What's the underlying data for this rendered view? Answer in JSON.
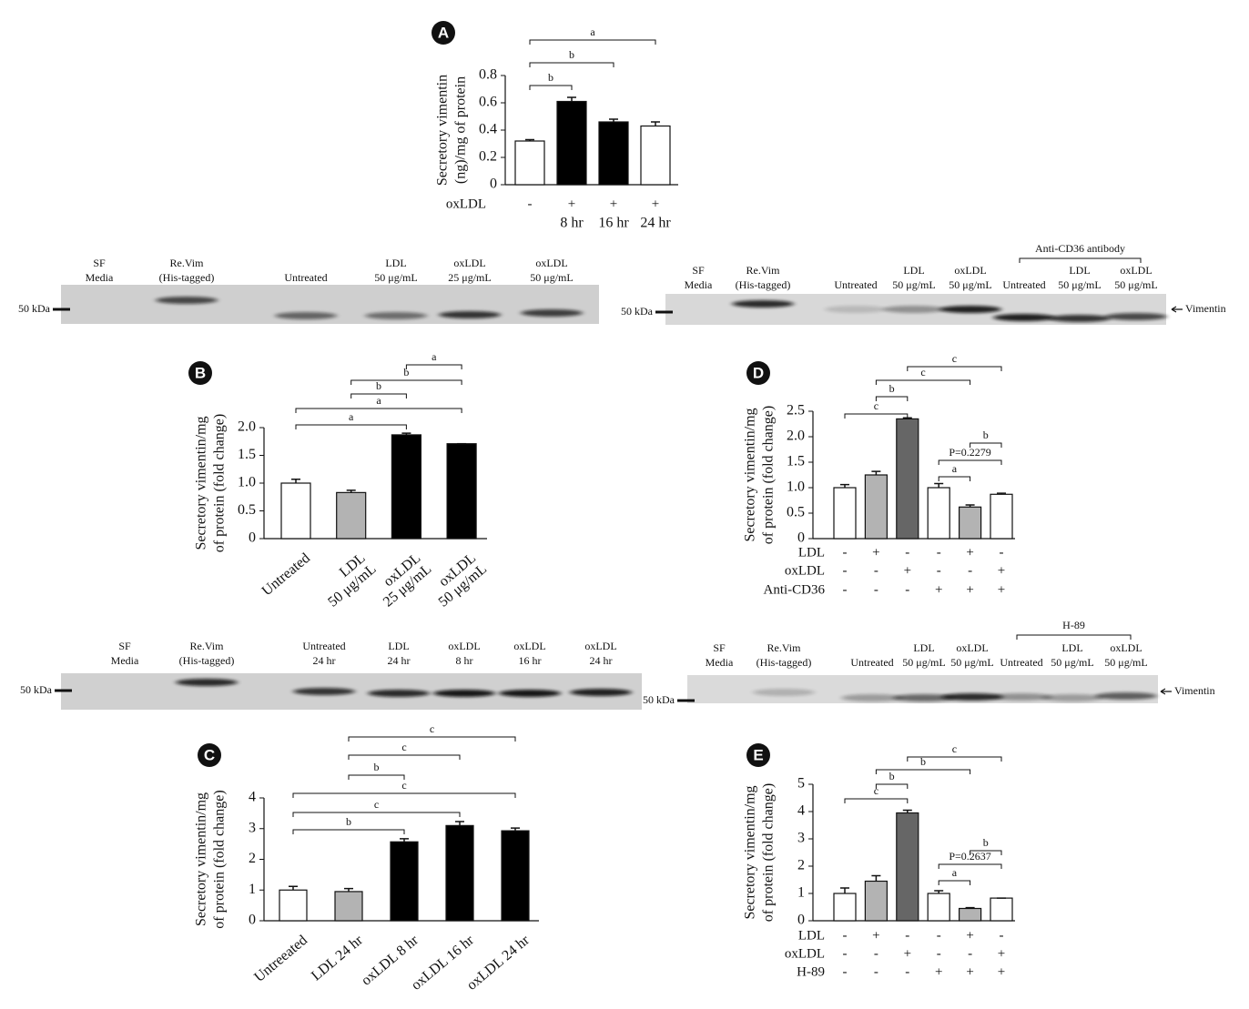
{
  "chart_data": [
    {
      "type": "bar",
      "panel": "A",
      "ylabel": [
        "Secretory vimentin",
        "(ng)/mg of protein"
      ],
      "categories": [
        null,
        "8 hr",
        "16 hr",
        "24 hr"
      ],
      "conditions": [
        {
          "name": "oxLDL",
          "values": [
            "-",
            "+",
            "+",
            "+"
          ]
        }
      ],
      "values": [
        0.32,
        0.61,
        0.46,
        0.43
      ],
      "errors": [
        0.01,
        0.03,
        0.02,
        0.03
      ],
      "colors": [
        "#ffffff",
        "#000000",
        "#000000",
        "#ffffff"
      ],
      "ylim": [
        0,
        0.8
      ],
      "yticks": [
        0,
        0.2,
        0.4,
        0.6,
        0.8
      ],
      "brackets": [
        {
          "from": 0,
          "to": 1,
          "label": "b"
        },
        {
          "from": 0,
          "to": 2,
          "label": "b"
        },
        {
          "from": 0,
          "to": 3,
          "label": "a"
        }
      ]
    },
    {
      "type": "bar",
      "panel": "B",
      "ylabel": [
        "Secretory vimentin/mg",
        "of protein (fold change)"
      ],
      "categories": [
        [
          "Untreated"
        ],
        [
          "LDL",
          "50 μg/mL"
        ],
        [
          "oxLDL",
          "25 μg/mL"
        ],
        [
          "oxLDL",
          "50 μg/mL"
        ]
      ],
      "values": [
        1.0,
        0.83,
        1.87,
        1.71
      ],
      "errors": [
        0.07,
        0.04,
        0.03,
        0
      ],
      "colors": [
        "#ffffff",
        "#b3b3b3",
        "#000000",
        "#000000"
      ],
      "ylim": [
        0,
        2
      ],
      "yticks": [
        0,
        0.5,
        {
          "value": 1,
          "label": "1.0"
        },
        1.5,
        {
          "value": 2,
          "label": "2.0"
        }
      ],
      "brackets": [
        {
          "from": 0,
          "to": 2,
          "label": "a"
        },
        {
          "from": 0,
          "to": 3,
          "label": "a"
        },
        {
          "from": 1,
          "to": 2,
          "label": "b"
        },
        {
          "from": 1,
          "to": 3,
          "label": "b"
        },
        {
          "from": 2,
          "to": 3,
          "label": "a"
        }
      ]
    },
    {
      "type": "bar",
      "panel": "C",
      "ylabel": [
        "Secretory vimentin/mg",
        "of protein (fold change)"
      ],
      "categories": [
        [
          "Untreeated"
        ],
        [
          "LDL 24 hr"
        ],
        [
          "oxLDL 8 hr"
        ],
        [
          "oxLDL 16 hr"
        ],
        [
          "oxLDL 24 hr"
        ]
      ],
      "values": [
        1.0,
        0.95,
        2.57,
        3.1,
        2.93
      ],
      "errors": [
        0.12,
        0.1,
        0.1,
        0.13,
        0.09
      ],
      "colors": [
        "#ffffff",
        "#b3b3b3",
        "#000000",
        "#000000",
        "#000000"
      ],
      "ylim": [
        0,
        4
      ],
      "yticks": [
        0,
        1,
        2,
        3,
        4
      ],
      "brackets": [
        {
          "from": 0,
          "to": 2,
          "label": "b"
        },
        {
          "from": 0,
          "to": 3,
          "label": "c"
        },
        {
          "from": 0,
          "to": 4,
          "label": "c"
        },
        {
          "from": 1,
          "to": 2,
          "label": "b"
        },
        {
          "from": 1,
          "to": 3,
          "label": "c"
        },
        {
          "from": 1,
          "to": 4,
          "label": "c"
        }
      ]
    },
    {
      "type": "bar",
      "panel": "D",
      "ylabel": [
        "Secretory vimentin/mg",
        "of protein (fold change)"
      ],
      "conditions": [
        {
          "name": "LDL",
          "values": [
            "-",
            "+",
            "-",
            "-",
            "+",
            "-"
          ]
        },
        {
          "name": "oxLDL",
          "values": [
            "-",
            "-",
            "+",
            "-",
            "-",
            "+"
          ]
        },
        {
          "name": "Anti-CD36",
          "values": [
            "-",
            "-",
            "-",
            "+",
            "+",
            "+"
          ]
        }
      ],
      "values": [
        1.0,
        1.25,
        2.35,
        1.0,
        0.62,
        0.87
      ],
      "errors": [
        0.06,
        0.07,
        0.02,
        0.08,
        0.04,
        0.02
      ],
      "colors": [
        "#ffffff",
        "#b3b3b3",
        "#666666",
        "#ffffff",
        "#b3b3b3",
        "#ffffff"
      ],
      "ylim": [
        0,
        2.5
      ],
      "yticks": [
        0,
        0.5,
        {
          "value": 1,
          "label": "1.0"
        },
        1.5,
        {
          "value": 2,
          "label": "2.0"
        },
        2.5
      ],
      "brackets": [
        {
          "from": 0,
          "to": 2,
          "label": "c"
        },
        {
          "from": 1,
          "to": 2,
          "label": "b"
        },
        {
          "from": 1,
          "to": 4,
          "label": "c"
        },
        {
          "from": 2,
          "to": 5,
          "label": "c"
        },
        {
          "from": 3,
          "to": 4,
          "label": "a"
        },
        {
          "from": 3,
          "to": 5,
          "label": "P=0.2279"
        },
        {
          "from": 4,
          "to": 5,
          "label": "b"
        }
      ]
    },
    {
      "type": "bar",
      "panel": "E",
      "ylabel": [
        "Secretory vimentin/mg",
        "of protein (fold change)"
      ],
      "conditions": [
        {
          "name": "LDL",
          "values": [
            "-",
            "+",
            "-",
            "-",
            "+",
            "-"
          ]
        },
        {
          "name": "oxLDL",
          "values": [
            "-",
            "-",
            "+",
            "-",
            "-",
            "+"
          ]
        },
        {
          "name": "H-89",
          "values": [
            "-",
            "-",
            "-",
            "+",
            "+",
            "+"
          ]
        }
      ],
      "values": [
        1.0,
        1.45,
        3.95,
        1.0,
        0.45,
        0.83
      ],
      "errors": [
        0.2,
        0.2,
        0.1,
        0.1,
        0.03,
        0
      ],
      "colors": [
        "#ffffff",
        "#b3b3b3",
        "#666666",
        "#ffffff",
        "#b3b3b3",
        "#ffffff"
      ],
      "ylim": [
        0,
        5
      ],
      "yticks": [
        0,
        1,
        2,
        3,
        4,
        5
      ],
      "brackets": [
        {
          "from": 0,
          "to": 2,
          "label": "c"
        },
        {
          "from": 1,
          "to": 2,
          "label": "b"
        },
        {
          "from": 1,
          "to": 4,
          "label": "b"
        },
        {
          "from": 2,
          "to": 5,
          "label": "c"
        },
        {
          "from": 3,
          "to": 4,
          "label": "a"
        },
        {
          "from": 3,
          "to": 5,
          "label": "P=0.2637"
        },
        {
          "from": 4,
          "to": 5,
          "label": "b"
        }
      ]
    }
  ],
  "blots": [
    {
      "marker": "50 kDa",
      "lanes": [
        [
          "SF",
          "Media"
        ],
        [
          "Re.Vim",
          "(His-tagged)"
        ],
        [
          "Untreated"
        ],
        [
          "LDL",
          "50 μg/mL"
        ],
        [
          "oxLDL",
          "25 μg/mL"
        ],
        [
          "oxLDL",
          "50 μg/mL"
        ]
      ]
    },
    {
      "marker": "50 kDa",
      "target": "Vimentin",
      "group": {
        "label": "Anti-CD36 antibody",
        "from": 5,
        "to": 7
      },
      "lanes": [
        [
          "SF",
          "Media"
        ],
        [
          "Re.Vim",
          "(His-tagged)"
        ],
        [
          "Untreated"
        ],
        [
          "LDL",
          "50 μg/mL"
        ],
        [
          "oxLDL",
          "50 μg/mL"
        ],
        [
          "Untreated"
        ],
        [
          "LDL",
          "50 μg/mL"
        ],
        [
          "oxLDL",
          "50 μg/mL"
        ]
      ]
    },
    {
      "marker": "50 kDa",
      "lanes": [
        [
          "SF",
          "Media"
        ],
        [
          "Re.Vim",
          "(His-tagged)"
        ],
        [
          "Untreated",
          "24 hr"
        ],
        [
          "LDL",
          "24 hr"
        ],
        [
          "oxLDL",
          "8 hr"
        ],
        [
          "oxLDL",
          "16 hr"
        ],
        [
          "oxLDL",
          "24 hr"
        ]
      ]
    },
    {
      "marker": "50 kDa",
      "target": "Vimentin",
      "group": {
        "label": "H-89",
        "from": 5,
        "to": 7
      },
      "lanes": [
        [
          "SF",
          "Media"
        ],
        [
          "Re.Vim",
          "(His-tagged)"
        ],
        [
          "Untreated"
        ],
        [
          "LDL",
          "50 μg/mL"
        ],
        [
          "oxLDL",
          "50 μg/mL"
        ],
        [
          "Untreated"
        ],
        [
          "LDL",
          "50 μg/mL"
        ],
        [
          "oxLDL",
          "50 μg/mL"
        ]
      ]
    }
  ]
}
